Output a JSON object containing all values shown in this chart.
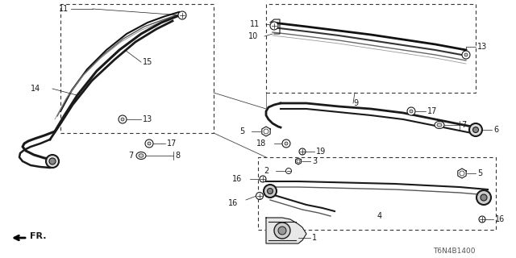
{
  "bg_color": "#ffffff",
  "diagram_code": "T6N4B1400",
  "direction_label": "FR.",
  "color_main": "#1a1a1a",
  "color_gray": "#555555",
  "color_light": "#888888"
}
